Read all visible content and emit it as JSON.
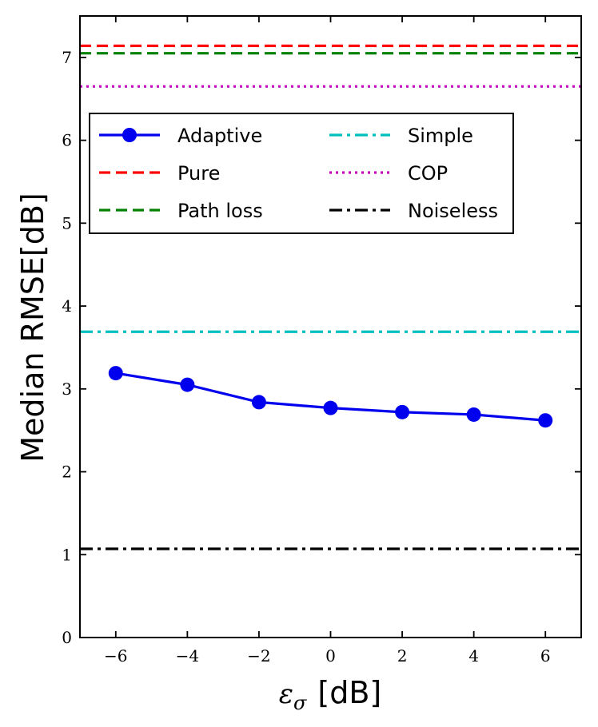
{
  "chart_data": {
    "type": "line",
    "title": "",
    "xlabel_symbol": "ε",
    "xlabel_subscript": "σ",
    "xlabel_unit": "[dB]",
    "ylabel": "Median RMSE[dB]",
    "xlim": [
      -7,
      7
    ],
    "ylim": [
      0,
      7.5
    ],
    "xticks": [
      -6,
      -4,
      -2,
      0,
      2,
      4,
      6
    ],
    "xtick_labels": [
      "−6",
      "−4",
      "−2",
      "0",
      "2",
      "4",
      "6"
    ],
    "yticks": [
      0,
      1,
      2,
      3,
      4,
      5,
      6,
      7
    ],
    "ytick_labels": [
      "0",
      "1",
      "2",
      "3",
      "4",
      "5",
      "6",
      "7"
    ],
    "legend_position": "upper-left",
    "series": [
      {
        "name": "Adaptive",
        "kind": "line-marker",
        "color": "#0000ee",
        "style": "solid",
        "x": [
          -6,
          -4,
          -2,
          0,
          2,
          4,
          6
        ],
        "values": [
          3.19,
          3.05,
          2.84,
          2.77,
          2.72,
          2.69,
          2.62
        ]
      },
      {
        "name": "Pure",
        "kind": "hline",
        "color": "#ff0000",
        "style": "dashed",
        "value": 7.14
      },
      {
        "name": "Path loss",
        "kind": "hline",
        "color": "#008000",
        "style": "dashed",
        "value": 7.05
      },
      {
        "name": "Simple",
        "kind": "hline",
        "color": "#00bfbf",
        "style": "dashdot",
        "value": 3.69
      },
      {
        "name": "COP",
        "kind": "hline",
        "color": "#bf00bf",
        "style": "dotted",
        "value": 6.65
      },
      {
        "name": "Noiseless",
        "kind": "hline",
        "color": "#000000",
        "style": "dashdot",
        "value": 1.07
      }
    ],
    "legend_order": [
      "Adaptive",
      "Pure",
      "Path loss",
      "Simple",
      "COP",
      "Noiseless"
    ]
  }
}
